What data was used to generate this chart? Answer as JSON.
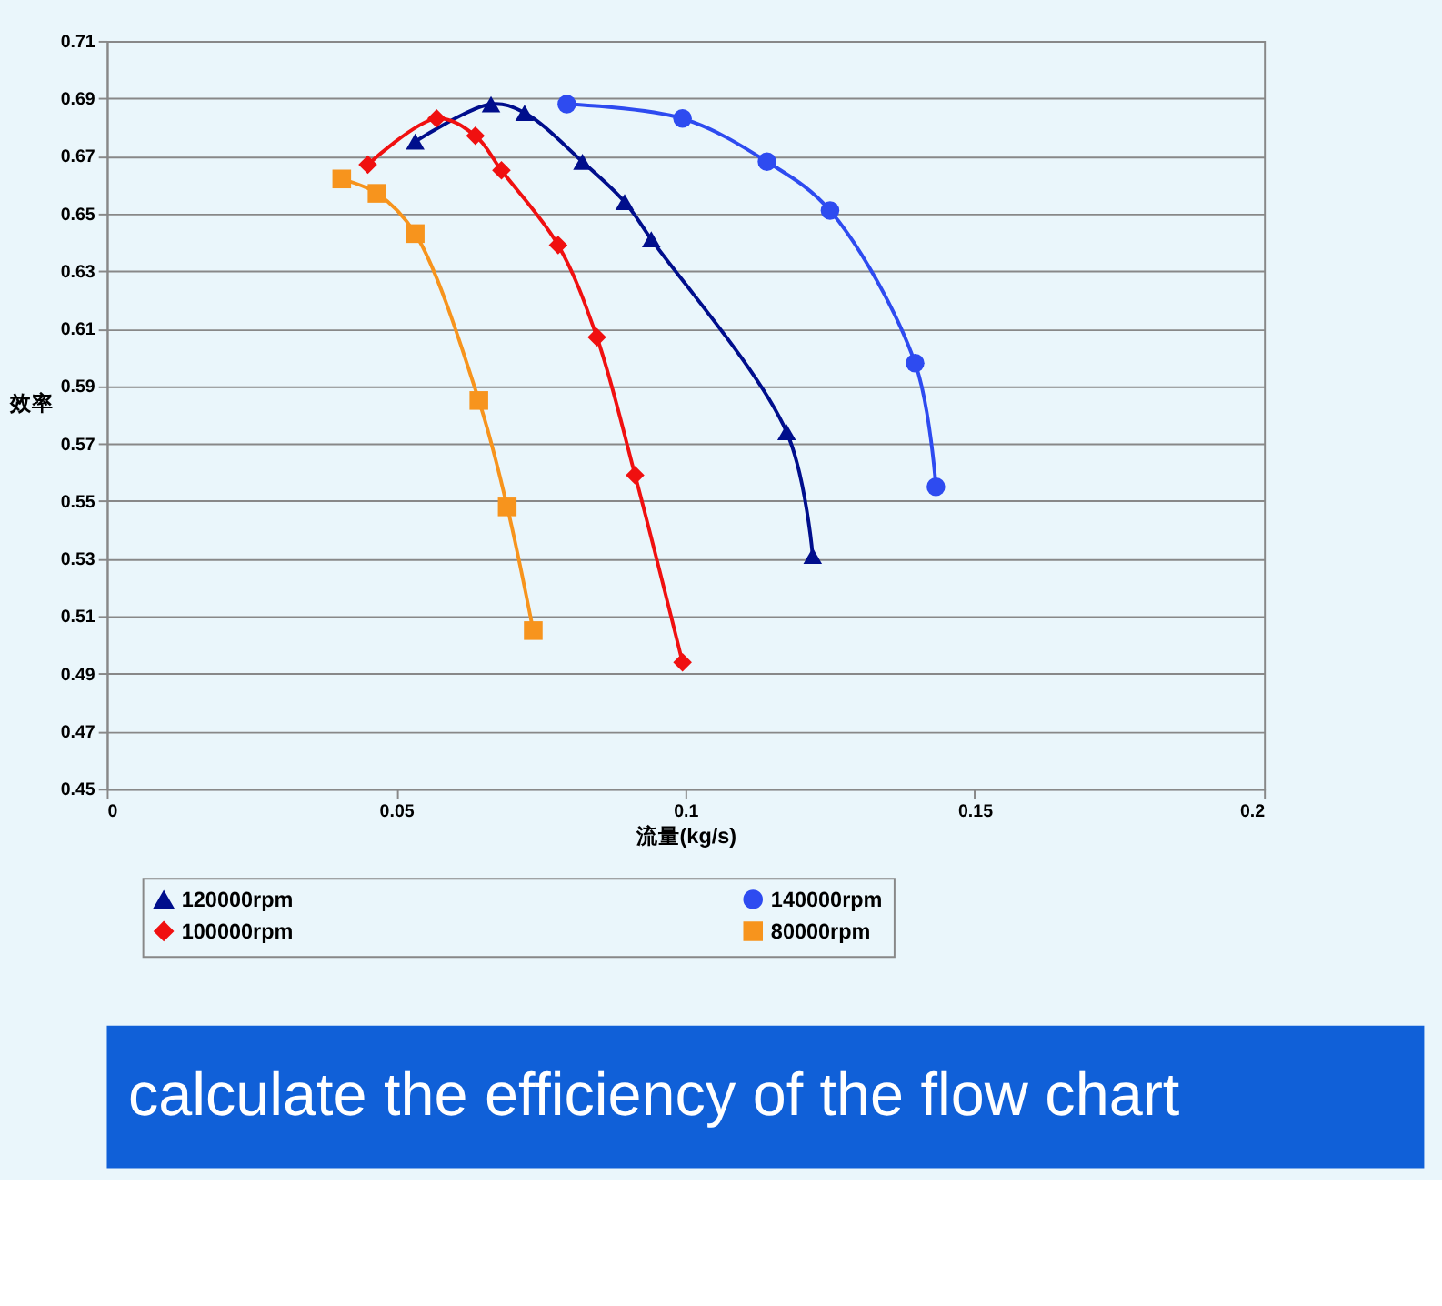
{
  "chart_data": {
    "type": "line",
    "xlabel": "流量(kg/s)",
    "ylabel": "效率",
    "xlim": [
      0,
      0.2
    ],
    "xticks": [
      0,
      0.05,
      0.1,
      0.15,
      0.2
    ],
    "ylim": [
      0.45,
      0.71
    ],
    "yticks": [
      0.45,
      0.47,
      0.49,
      0.51,
      0.53,
      0.55,
      0.57,
      0.59,
      0.61,
      0.63,
      0.65,
      0.67,
      0.69,
      0.71
    ],
    "grid": "y",
    "legend": "bottom",
    "series": [
      {
        "name": "120000rpm",
        "color": "#000e8c",
        "marker": "triangle",
        "x": [
          0.0533,
          0.0664,
          0.0722,
          0.0822,
          0.0895,
          0.0941,
          0.1175,
          0.122
        ],
        "values": [
          0.675,
          0.688,
          0.685,
          0.668,
          0.654,
          0.641,
          0.574,
          0.531
        ]
      },
      {
        "name": "140000rpm",
        "color": "#2e4bf0",
        "marker": "circle",
        "x": [
          0.0795,
          0.0995,
          0.1141,
          0.125,
          0.1397,
          0.1433
        ],
        "values": [
          0.688,
          0.683,
          0.668,
          0.651,
          0.598,
          0.555
        ]
      },
      {
        "name": "100000rpm",
        "color": "#f01010",
        "marker": "diamond",
        "x": [
          0.0451,
          0.057,
          0.0637,
          0.0682,
          0.078,
          0.0847,
          0.0913,
          0.0995
        ],
        "values": [
          0.667,
          0.683,
          0.677,
          0.665,
          0.639,
          0.607,
          0.559,
          0.494
        ]
      },
      {
        "name": "80000rpm",
        "color": "#f7941d",
        "marker": "square",
        "x": [
          0.0406,
          0.0467,
          0.0533,
          0.0643,
          0.0692,
          0.0737
        ],
        "values": [
          0.662,
          0.657,
          0.643,
          0.585,
          0.548,
          0.505
        ]
      }
    ],
    "annotations": [
      "calculate the efficiency of the flow chart"
    ]
  }
}
